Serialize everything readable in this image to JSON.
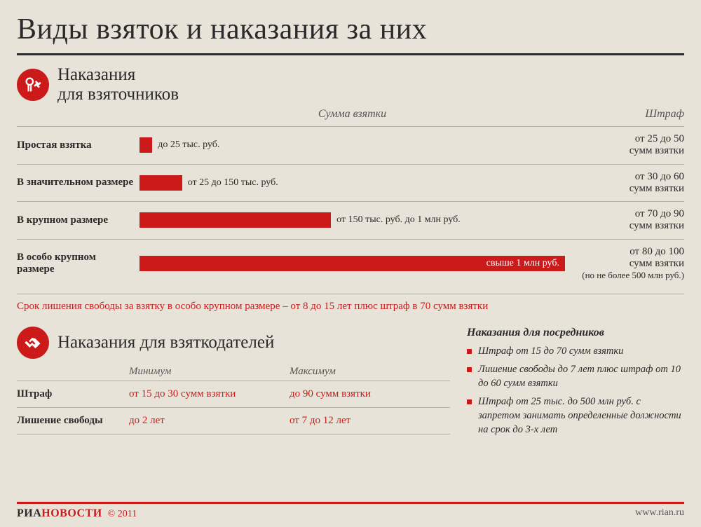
{
  "title": "Виды взяток и наказания за них",
  "colors": {
    "accent": "#cc1a1a",
    "background": "#e8e3d8",
    "text": "#2a2a2a",
    "divider": "#b5b0a4",
    "muted": "#555555"
  },
  "section1": {
    "title_line1": "Наказания",
    "title_line2": "для взяточников",
    "col_amount": "Сумма взятки",
    "col_penalty": "Штраф",
    "bars": [
      {
        "label": "Простая взятка",
        "bar_text": "до 25 тыс. руб.",
        "bar_width_pct": 3,
        "text_inside": false,
        "penalty_l1": "от 25 до 50",
        "penalty_l2": "сумм взятки"
      },
      {
        "label": "В значительном размере",
        "bar_text": "от 25 до 150 тыс. руб.",
        "bar_width_pct": 10,
        "text_inside": false,
        "penalty_l1": "от 30 до 60",
        "penalty_l2": "сумм взятки"
      },
      {
        "label": "В крупном размере",
        "bar_text": "от 150 тыс. руб. до 1 млн руб.",
        "bar_width_pct": 45,
        "text_inside": false,
        "penalty_l1": "от 70 до 90",
        "penalty_l2": "сумм взятки"
      },
      {
        "label": "В особо крупном размере",
        "bar_text": "свыше 1 млн руб.",
        "bar_width_pct": 100,
        "text_inside": true,
        "text_align": "right",
        "penalty_l1": "от 80 до 100",
        "penalty_l2": "сумм взятки",
        "penalty_l3": "(но не более 500 млн руб.)"
      }
    ],
    "note": "Срок лишения свободы за взятку в особо крупном размере – от 8 до 15 лет плюс штраф в 70 сумм взятки"
  },
  "section2": {
    "title": "Наказания для взяткодателей",
    "col_min": "Минимум",
    "col_max": "Максимум",
    "rows": [
      {
        "label": "Штраф",
        "min": "от 15 до 30 сумм взятки",
        "max": "до 90 сумм взятки"
      },
      {
        "label": "Лишение свободы",
        "min": "до 2 лет",
        "max": "от 7 до 12 лет"
      }
    ]
  },
  "mediators": {
    "title": "Наказания для посредников",
    "items": [
      "Штраф от 15 до 70 сумм взятки",
      "Лишение свободы до 7 лет плюс штраф от 10 до 60 сумм взятки",
      "Штраф от 25 тыс. до 500 млн руб. с запретом занимать определенные должности на срок до 3-х лет"
    ]
  },
  "footer": {
    "brand_part1": "РИА",
    "brand_part2": "НОВОСТИ",
    "copyright": "© 2011",
    "url": "www.rian.ru"
  }
}
